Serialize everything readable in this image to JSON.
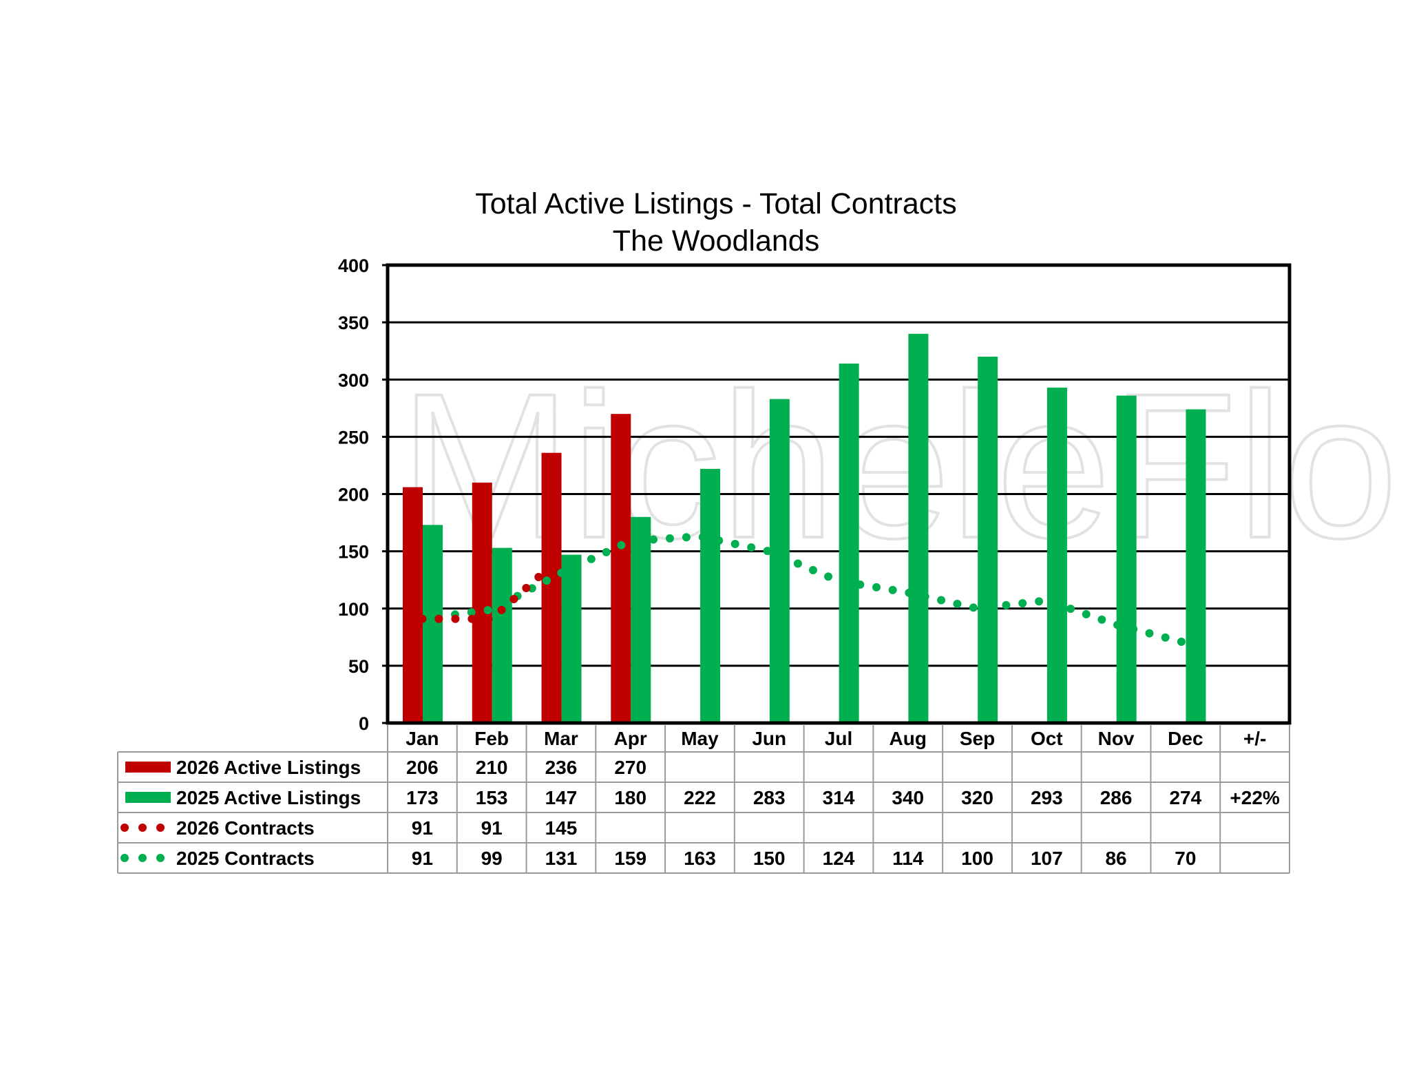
{
  "chart_data": {
    "type": "bar",
    "title": "Total Active Listings - Total Contracts",
    "subtitle": "The Woodlands",
    "watermark": "MicheleFlory & Company",
    "xlabel": "",
    "ylabel": "",
    "ylim": [
      0,
      400
    ],
    "yticks": [
      0,
      50,
      100,
      150,
      200,
      250,
      300,
      350,
      400
    ],
    "grid": true,
    "categories": [
      "Jan",
      "Feb",
      "Mar",
      "Apr",
      "May",
      "Jun",
      "Jul",
      "Aug",
      "Sep",
      "Oct",
      "Nov",
      "Dec"
    ],
    "extra_column": "+/-",
    "series": [
      {
        "name": "2026 Active Listings",
        "kind": "bar",
        "color": "#C00000",
        "values": [
          206,
          210,
          236,
          270,
          null,
          null,
          null,
          null,
          null,
          null,
          null,
          null
        ],
        "extra": ""
      },
      {
        "name": "2025 Active Listings",
        "kind": "bar",
        "color": "#00B050",
        "values": [
          173,
          153,
          147,
          180,
          222,
          283,
          314,
          340,
          320,
          293,
          286,
          274
        ],
        "extra": "+22%"
      },
      {
        "name": "2026 Contracts",
        "kind": "dotted-line",
        "color": "#C00000",
        "values": [
          91,
          91,
          145,
          null,
          null,
          null,
          null,
          null,
          null,
          null,
          null,
          null
        ],
        "extra": ""
      },
      {
        "name": "2025 Contracts",
        "kind": "dotted-line",
        "color": "#00B050",
        "values": [
          91,
          99,
          131,
          159,
          163,
          150,
          124,
          114,
          100,
          107,
          86,
          70
        ],
        "extra": ""
      }
    ]
  }
}
